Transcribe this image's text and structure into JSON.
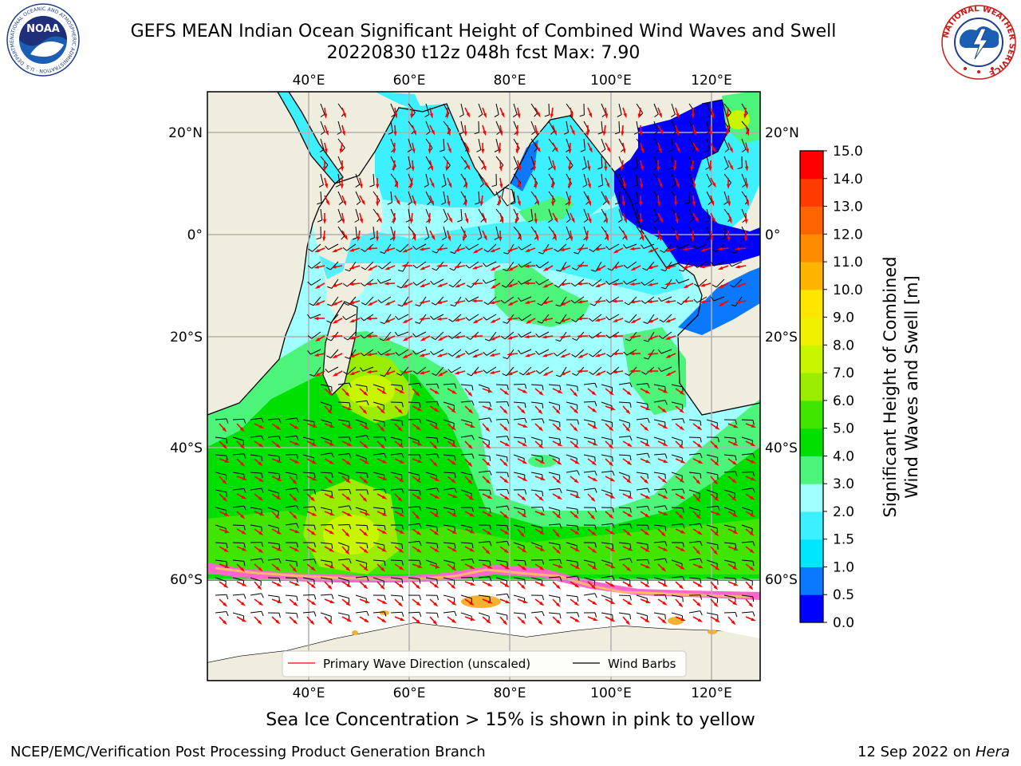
{
  "header": {
    "title_line1": "GEFS MEAN Indian Ocean Significant Height of Combined Wind Waves and Swell",
    "title_line2": "20220830 t12z 048h fcst   Max: 7.90"
  },
  "logos": {
    "left": "NOAA",
    "left_ring": "NATIONAL OCEANIC AND ATMOSPHERIC ADMINISTRATION · U.S. DEPARTMENT OF COMMERCE",
    "right_ring": "NATIONAL WEATHER SERVICE"
  },
  "map": {
    "lon_ticks": [
      "40°E",
      "60°E",
      "80°E",
      "100°E",
      "120°E"
    ],
    "lat_ticks": [
      "20°N",
      "0°",
      "20°S",
      "40°S",
      "60°S"
    ],
    "legend": {
      "wave_label": "Primary Wave Direction (unscaled)",
      "barb_label": "Wind Barbs"
    }
  },
  "colorbar": {
    "label_line1": "Significant Height of Combined",
    "label_line2": "Wind Waves and Swell [m]",
    "ticks": [
      "0.0",
      "0.5",
      "1.0",
      "1.5",
      "2.0",
      "3.0",
      "4.0",
      "5.0",
      "6.0",
      "7.0",
      "8.0",
      "9.0",
      "10.0",
      "11.0",
      "12.0",
      "13.0",
      "14.0",
      "15.0"
    ],
    "colors": [
      "#0000ff",
      "#0a78ff",
      "#00e6ff",
      "#3cf0ff",
      "#a0ffff",
      "#4cf57a",
      "#00e000",
      "#40e600",
      "#9aec00",
      "#c8f500",
      "#f0f000",
      "#ffe600",
      "#ffb400",
      "#ff8c00",
      "#ff6400",
      "#ff3c00",
      "#ff0000"
    ]
  },
  "caption": "Sea Ice Concentration > 15% is shown in pink to yellow",
  "footer": {
    "left": "NCEP/EMC/Verification Post Processing Product Generation Branch",
    "right_prefix": "12 Sep 2022 on ",
    "right_italic": "Hera"
  }
}
